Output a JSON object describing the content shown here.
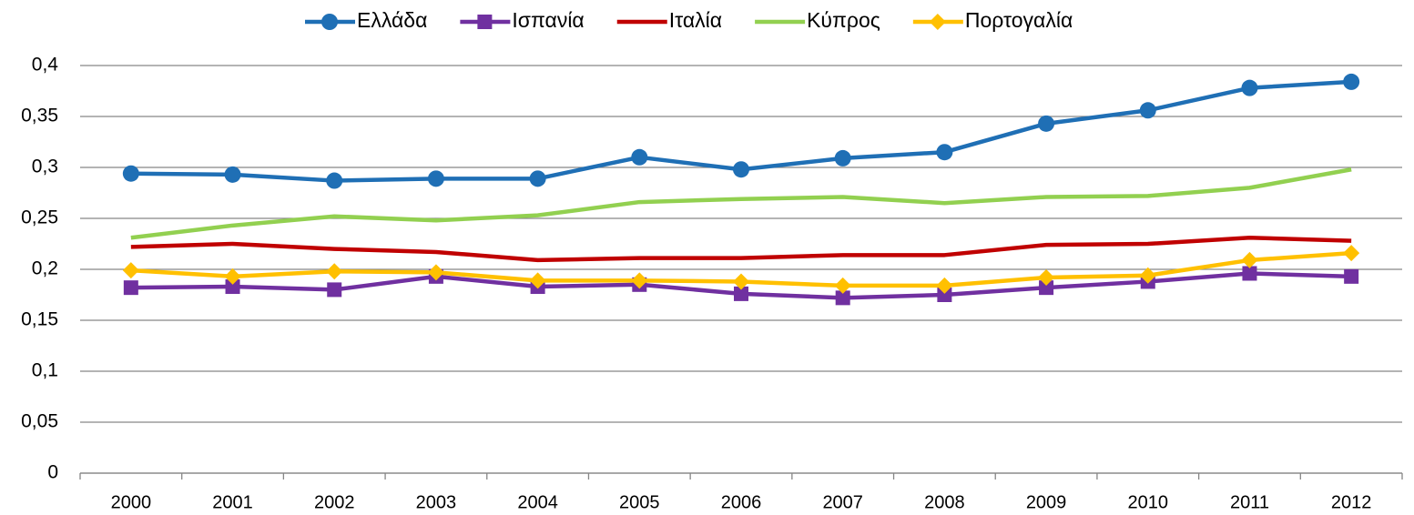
{
  "chart_data": {
    "type": "line",
    "categories": [
      "2000",
      "2001",
      "2002",
      "2003",
      "2004",
      "2005",
      "2006",
      "2007",
      "2008",
      "2009",
      "2010",
      "2011",
      "2012"
    ],
    "series": [
      {
        "name": "Ελλάδα",
        "color": "#1f6fb5",
        "marker": "circle",
        "values": [
          0.294,
          0.293,
          0.287,
          0.289,
          0.289,
          0.31,
          0.298,
          0.309,
          0.315,
          0.343,
          0.356,
          0.378,
          0.384
        ]
      },
      {
        "name": "Ισπανία",
        "color": "#7030a0",
        "marker": "square",
        "values": [
          0.182,
          0.183,
          0.18,
          0.193,
          0.183,
          0.185,
          0.176,
          0.172,
          0.175,
          0.182,
          0.188,
          0.196,
          0.193
        ]
      },
      {
        "name": "Ιταλία",
        "color": "#c00000",
        "marker": "none",
        "values": [
          0.222,
          0.225,
          0.22,
          0.217,
          0.209,
          0.211,
          0.211,
          0.214,
          0.214,
          0.224,
          0.225,
          0.231,
          0.228
        ]
      },
      {
        "name": "Κύπρος",
        "color": "#92d050",
        "marker": "none",
        "values": [
          0.231,
          0.243,
          0.252,
          0.248,
          0.253,
          0.266,
          0.269,
          0.271,
          0.265,
          0.271,
          0.272,
          0.28,
          0.298
        ]
      },
      {
        "name": "Πορτογαλία",
        "color": "#ffc000",
        "marker": "diamond",
        "values": [
          0.199,
          0.193,
          0.198,
          0.197,
          0.189,
          0.189,
          0.188,
          0.184,
          0.184,
          0.192,
          0.194,
          0.209,
          0.216
        ]
      }
    ],
    "ylim": [
      0,
      0.4
    ],
    "yticks": [
      0,
      {
        "value": 0.05,
        "label": "0,05"
      },
      {
        "value": 0.1,
        "label": "0,1"
      },
      {
        "value": 0.15,
        "label": "0,15"
      },
      {
        "value": 0.2,
        "label": "0,2"
      },
      {
        "value": 0.25,
        "label": "0,25"
      },
      {
        "value": 0.3,
        "label": "0,3"
      },
      {
        "value": 0.35,
        "label": "0,35"
      },
      {
        "value": 0.4,
        "label": "0,4"
      }
    ],
    "grid": true,
    "legend": "top"
  }
}
